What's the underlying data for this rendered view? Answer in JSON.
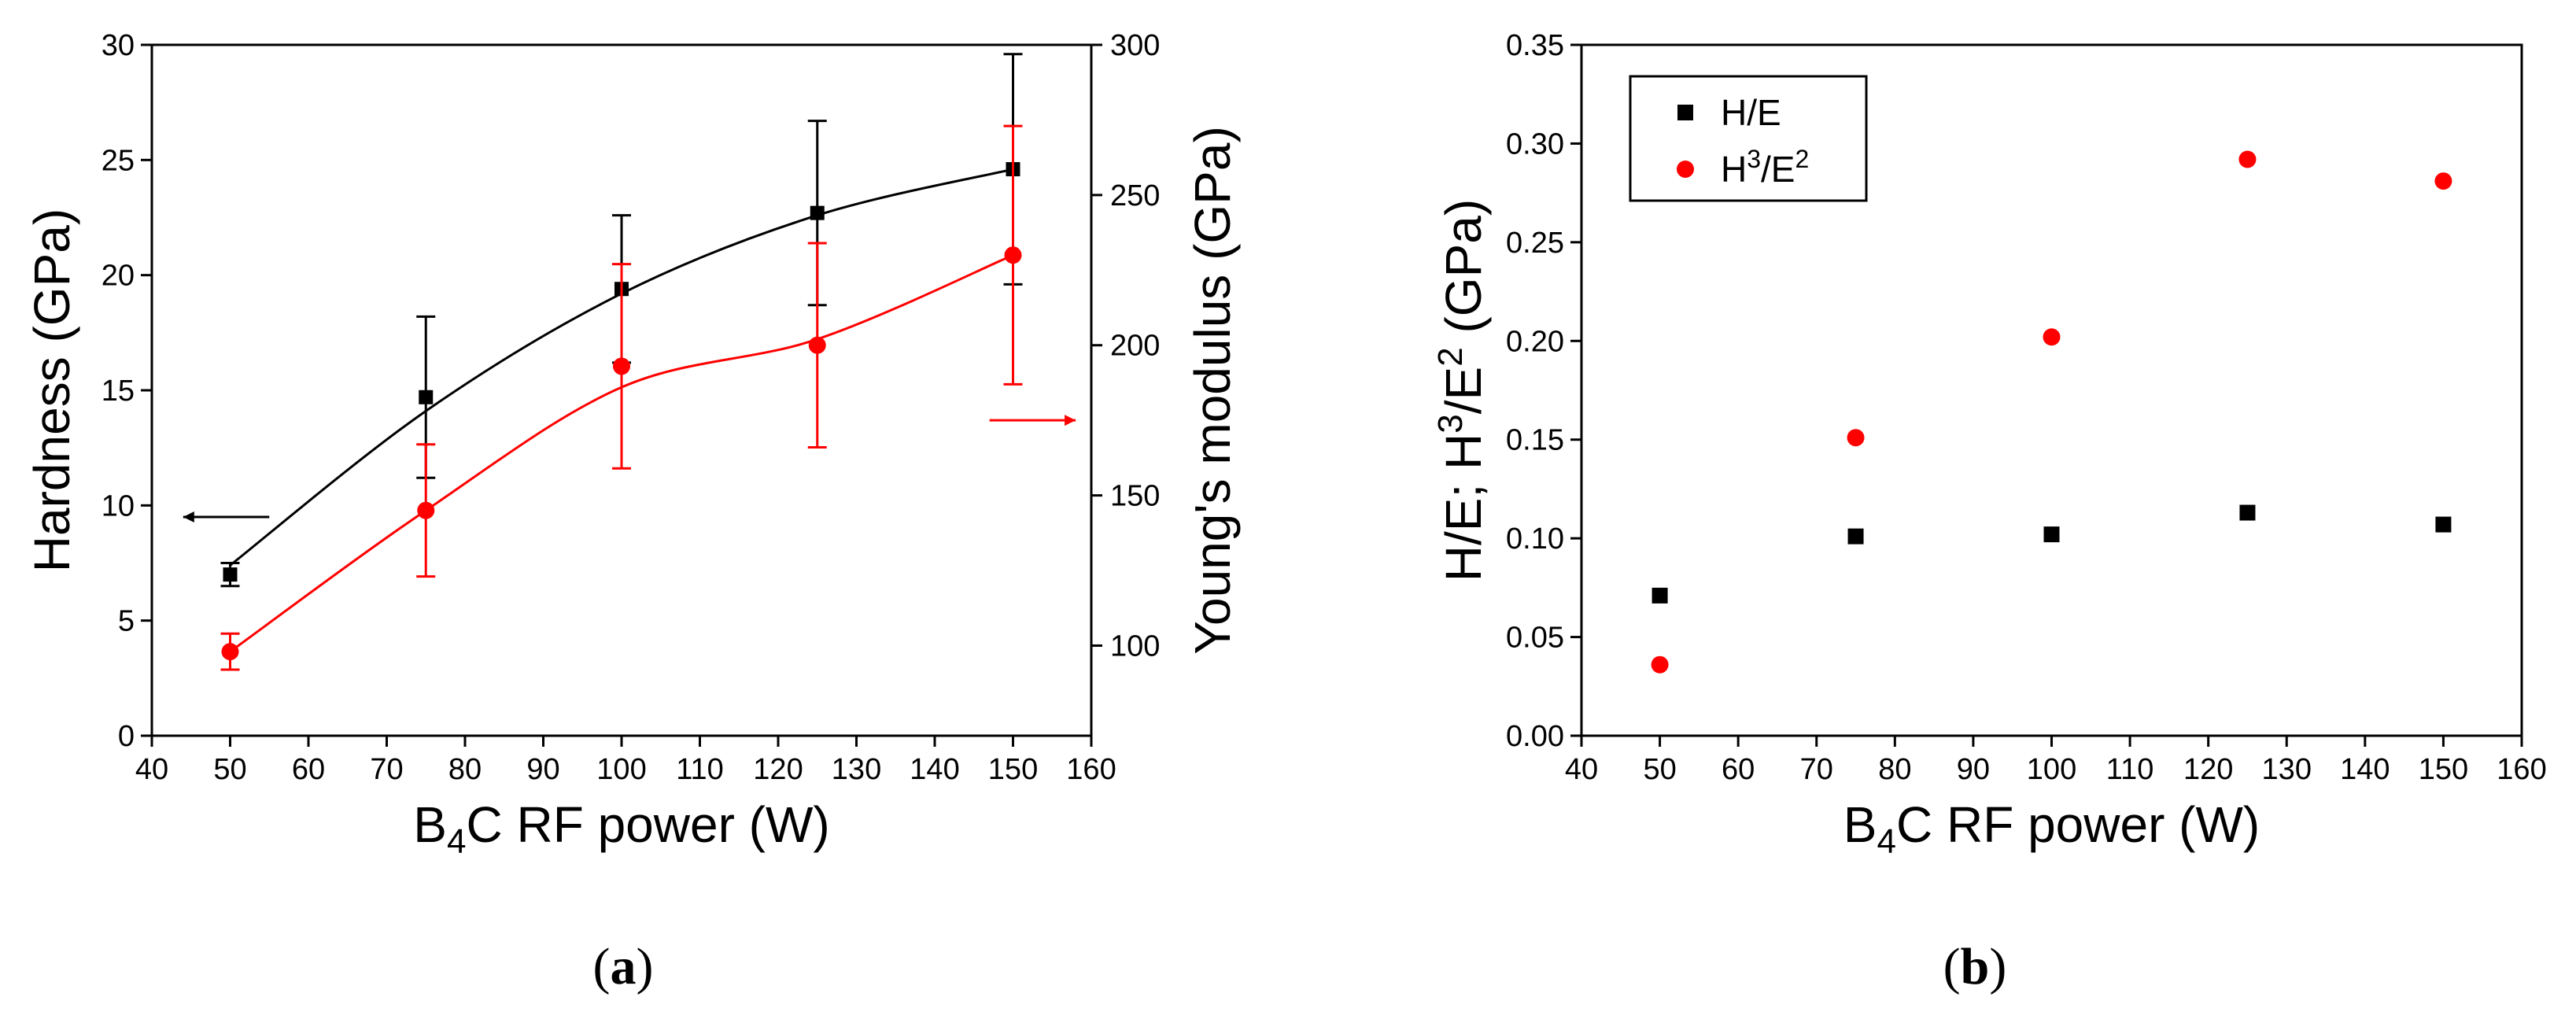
{
  "chart_data": [
    {
      "panel": "a",
      "type": "scatter",
      "x_unit_label": {
        "prefix": "B",
        "subscript": "4",
        "suffix": "C RF power (W)"
      },
      "ylabel_left": "Hardness (GPa)",
      "ylabel_right": "Young's modulus (GPa)",
      "xlim": [
        40,
        160
      ],
      "ylim_left": [
        0,
        30
      ],
      "ylim_right": [
        70,
        300
      ],
      "xticks": [
        40,
        50,
        60,
        70,
        80,
        90,
        100,
        110,
        120,
        130,
        140,
        150,
        160
      ],
      "yticks_left": [
        0,
        5,
        10,
        15,
        20,
        25,
        30
      ],
      "yticks_right": [
        100,
        150,
        200,
        250,
        300
      ],
      "series": [
        {
          "name": "Hardness",
          "axis": "left",
          "color": "#000000",
          "marker": "square",
          "x": [
            50,
            75,
            100,
            125,
            150
          ],
          "y": [
            7.0,
            14.7,
            19.4,
            22.7,
            24.6
          ],
          "err": [
            0.5,
            3.5,
            3.2,
            4.0,
            5.0
          ],
          "fit_x": [
            50,
            75,
            100,
            125,
            150
          ],
          "fit_y": [
            7.4,
            14.1,
            19.2,
            22.6,
            24.6
          ],
          "arrow": "left"
        },
        {
          "name": "Young's modulus",
          "axis": "right",
          "color": "#ff0000",
          "marker": "circle",
          "x": [
            50,
            75,
            100,
            125,
            150
          ],
          "y": [
            98,
            145,
            193,
            200,
            230
          ],
          "err": [
            6,
            22,
            34,
            34,
            43
          ],
          "fit_x": [
            50,
            75,
            100,
            125,
            150
          ],
          "fit_y": [
            98,
            145,
            186,
            202,
            230
          ],
          "arrow": "right"
        }
      ]
    },
    {
      "panel": "b",
      "type": "scatter",
      "x_unit_label": {
        "prefix": "B",
        "subscript": "4",
        "suffix": "C RF power (W)"
      },
      "ylabel": {
        "part1": "H/E; H",
        "sup1": "3",
        "part2": "/E",
        "sup2": "2",
        "part3": " (GPa)"
      },
      "xlim": [
        40,
        160
      ],
      "ylim": [
        0,
        0.35
      ],
      "xticks": [
        40,
        50,
        60,
        70,
        80,
        90,
        100,
        110,
        120,
        130,
        140,
        150,
        160
      ],
      "yticks": [
        "0.00",
        "0.05",
        "0.10",
        "0.15",
        "0.20",
        "0.25",
        "0.30",
        "0.35"
      ],
      "legend_position": "top-left",
      "series": [
        {
          "name": "H/E",
          "legend": {
            "text": "H/E"
          },
          "color": "#000000",
          "marker": "square",
          "x": [
            50,
            75,
            100,
            125,
            150
          ],
          "y": [
            0.071,
            0.101,
            0.102,
            0.113,
            0.107
          ]
        },
        {
          "name": "H3/E2",
          "legend": {
            "base1": "H",
            "sup1": "3",
            "base2": "/E",
            "sup2": "2"
          },
          "color": "#ff0000",
          "marker": "circle",
          "x": [
            50,
            75,
            100,
            125,
            150
          ],
          "y": [
            0.036,
            0.151,
            0.202,
            0.292,
            0.281
          ]
        }
      ]
    }
  ],
  "panel_labels": [
    {
      "open": "(",
      "letter": "a",
      "close": ")"
    },
    {
      "open": "(",
      "letter": "b",
      "close": ")"
    }
  ]
}
